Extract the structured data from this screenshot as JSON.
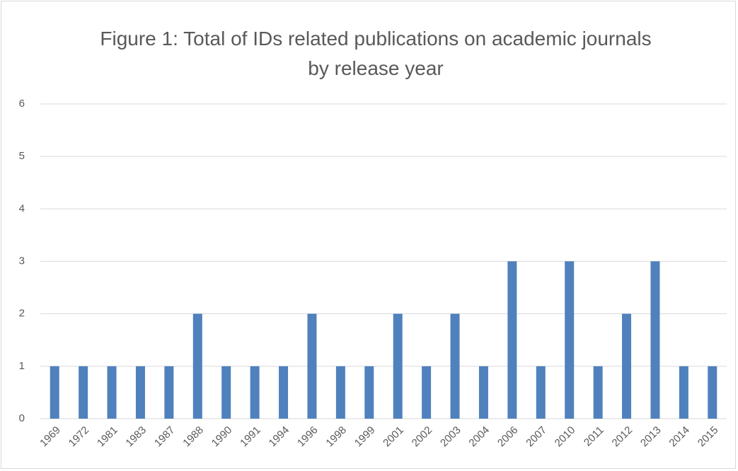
{
  "chart_data": {
    "type": "bar",
    "title": "Figure 1: Total of IDs related publications on academic journals by release year",
    "categories": [
      "1969",
      "1972",
      "1981",
      "1983",
      "1987",
      "1988",
      "1990",
      "1991",
      "1994",
      "1996",
      "1998",
      "1999",
      "2001",
      "2002",
      "2003",
      "2004",
      "2006",
      "2007",
      "2010",
      "2011",
      "2012",
      "2013",
      "2014",
      "2015"
    ],
    "values": [
      1,
      1,
      1,
      1,
      1,
      2,
      1,
      1,
      1,
      2,
      1,
      1,
      2,
      1,
      2,
      1,
      3,
      1,
      3,
      1,
      2,
      3,
      1,
      1
    ],
    "color": "#4f81bd",
    "ylim": [
      0,
      6
    ],
    "yticks": [
      0,
      1,
      2,
      3,
      4,
      5,
      6
    ],
    "grid": true
  }
}
